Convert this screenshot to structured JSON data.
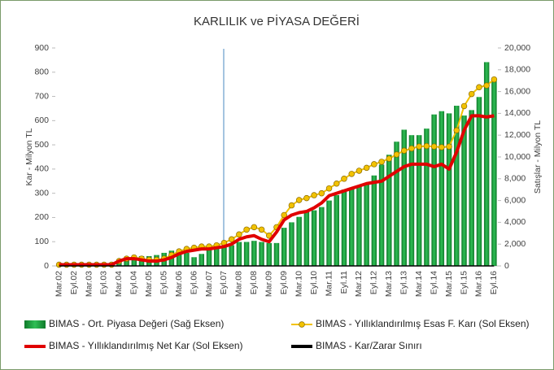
{
  "chart_data": {
    "type": "combo",
    "title": "KARLILIK ve PİYASA DEĞERİ",
    "y_label": "Kar - Milyon TL",
    "y2_label": "Satışlar - Milyon TL",
    "categories": [
      "Mar.02",
      null,
      "Eyl.02",
      null,
      "Mar.03",
      null,
      "Eyl.03",
      null,
      "Mar.04",
      null,
      "Eyl.04",
      null,
      "Mar.05",
      null,
      "Eyl.05",
      null,
      "Mar.06",
      null,
      "Eyl.06",
      null,
      "Mar.07",
      null,
      "Eyl.07",
      null,
      "Mar.08",
      null,
      "Eyl.08",
      null,
      "Mar.09",
      null,
      "Eyl.09",
      null,
      "Mar.10",
      null,
      "Eyl.10",
      null,
      "Mar.11",
      null,
      "Eyl.11",
      null,
      "Mar.12",
      null,
      "Eyl.12",
      null,
      "Mar.13",
      null,
      "Eyl.13",
      null,
      "Mar.14",
      null,
      "Eyl.14",
      null,
      "Mar.15",
      null,
      "Eyl.15",
      null,
      "Mar.16",
      null,
      "Eyl.16"
    ],
    "series": [
      {
        "name": "BIMAS - Ort. Piyasa Değeri (Sağ Eksen)",
        "type": "bar",
        "axis": "y2",
        "color": "#1e9e3e",
        "values": [
          200,
          200,
          150,
          150,
          150,
          200,
          250,
          300,
          600,
          700,
          800,
          900,
          900,
          1000,
          1200,
          1400,
          1500,
          1200,
          800,
          1100,
          1500,
          1700,
          1800,
          1900,
          2200,
          2200,
          2300,
          2200,
          2100,
          2100,
          3500,
          4000,
          4500,
          5000,
          5100,
          5400,
          6000,
          6500,
          7000,
          7200,
          7300,
          7600,
          8300,
          9300,
          10200,
          11400,
          12500,
          12000,
          12000,
          12600,
          13900,
          14200,
          14000,
          14700,
          13800,
          14300,
          15500,
          18700,
          17100
        ]
      },
      {
        "name": "BIMAS - Yıllıklandırılmış Esas F. Karı (Sol Eksen)",
        "type": "line",
        "marker": true,
        "color": "#f2c200",
        "values": [
          5,
          5,
          5,
          5,
          5,
          5,
          5,
          5,
          20,
          30,
          35,
          30,
          25,
          25,
          30,
          45,
          60,
          70,
          75,
          80,
          80,
          85,
          95,
          110,
          130,
          150,
          160,
          150,
          125,
          160,
          210,
          250,
          272,
          280,
          292,
          300,
          320,
          340,
          360,
          380,
          393,
          405,
          420,
          430,
          443,
          460,
          476,
          485,
          493,
          495,
          493,
          490,
          493,
          560,
          660,
          710,
          738,
          745,
          770
        ]
      },
      {
        "name": "BIMAS - Yıllıklandırılmış Net Kar (Sol Eksen)",
        "type": "line",
        "marker": false,
        "color": "#e00000",
        "values": [
          5,
          5,
          5,
          5,
          5,
          5,
          5,
          5,
          20,
          30,
          30,
          25,
          20,
          20,
          25,
          35,
          50,
          60,
          65,
          70,
          70,
          75,
          80,
          90,
          110,
          120,
          125,
          110,
          100,
          140,
          190,
          210,
          220,
          225,
          240,
          260,
          290,
          300,
          310,
          320,
          330,
          340,
          345,
          350,
          370,
          390,
          410,
          420,
          420,
          420,
          410,
          420,
          400,
          470,
          560,
          620,
          620,
          615,
          620
        ]
      },
      {
        "name": "BIMAS - Kar/Zarar Sınırı",
        "type": "line",
        "marker": false,
        "color": "#000000",
        "values": [
          0,
          0,
          0,
          0,
          0,
          0,
          0,
          0,
          0,
          0,
          0,
          0,
          0,
          0,
          0,
          0,
          0,
          0,
          0,
          0,
          0,
          0,
          0,
          0,
          0,
          0,
          0,
          0,
          0,
          0,
          0,
          0,
          0,
          0,
          0,
          0,
          0,
          0,
          0,
          0,
          0,
          0,
          0,
          0,
          0,
          0,
          0,
          0,
          0,
          0,
          0,
          0,
          0,
          0,
          0,
          0,
          0,
          0,
          0
        ]
      }
    ],
    "ylim": [
      0,
      900
    ],
    "yticks": [
      0,
      100,
      200,
      300,
      400,
      500,
      600,
      700,
      800,
      900
    ],
    "y2lim": [
      0,
      20000
    ],
    "y2ticks": [
      0,
      {
        "value": 2000,
        "label": "2,000"
      },
      {
        "value": 4000,
        "label": "4,000"
      },
      {
        "value": 6000,
        "label": "6,000"
      },
      {
        "value": 8000,
        "label": "8,000"
      },
      {
        "value": 10000,
        "label": "10,000"
      },
      {
        "value": 12000,
        "label": "12,000"
      },
      {
        "value": 14000,
        "label": "14,000"
      },
      {
        "value": 16000,
        "label": "16,000"
      },
      {
        "value": 18000,
        "label": "18,000"
      },
      {
        "value": 20000,
        "label": "20,000"
      }
    ],
    "grid": false,
    "legend": "bottom"
  }
}
